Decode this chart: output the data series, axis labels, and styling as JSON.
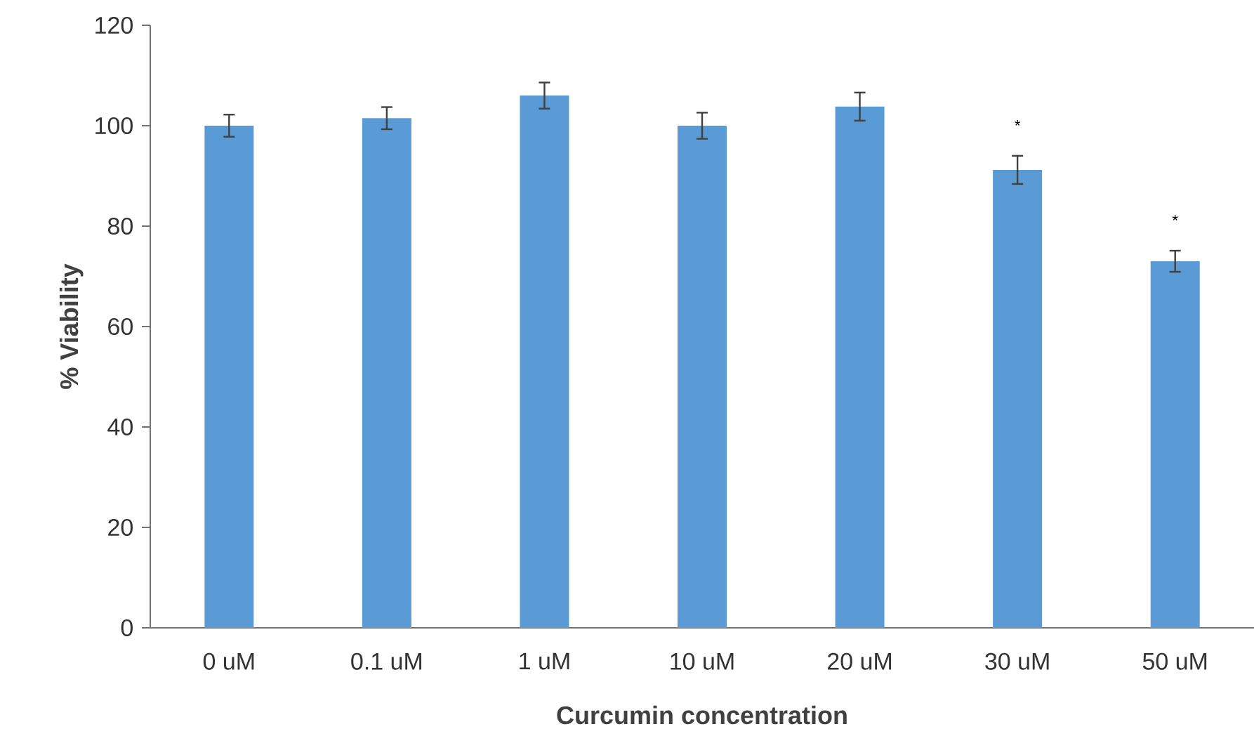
{
  "chart_data": {
    "type": "bar",
    "xlabel": "Curcumin concentration",
    "ylabel": "% Viability",
    "categories": [
      "0 uM",
      "0.1 uM",
      "1 uM",
      "10 uM",
      "20 uM",
      "30 uM",
      "50 uM"
    ],
    "values": [
      100,
      101.5,
      106,
      100,
      103.8,
      91.2,
      73
    ],
    "errors": [
      2.2,
      2.2,
      2.6,
      2.6,
      2.8,
      2.8,
      2.1
    ],
    "color": "#5b9bd5",
    "ylim": [
      0,
      120
    ],
    "yticks": [
      0,
      20,
      40,
      60,
      80,
      100,
      120
    ],
    "annotations": [
      {
        "text": "*",
        "x": "30 uM",
        "y": 91.2
      },
      {
        "text": "*",
        "x": "50 uM",
        "y": 73
      }
    ],
    "grid": false
  }
}
